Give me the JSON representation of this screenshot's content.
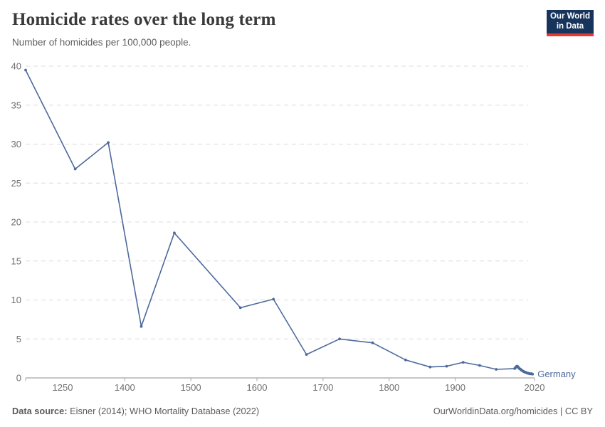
{
  "header": {
    "title": "Homicide rates over the long term",
    "subtitle": "Number of homicides per 100,000 people.",
    "logo": {
      "line1": "Our World",
      "line2": "in Data"
    }
  },
  "colors": {
    "series_line": "#4c6a9c",
    "logo_background": "#17355c",
    "logo_accent": "#e6392f",
    "gridline": "#dcdcdc",
    "axis_line": "#8c8c8c",
    "tick_label": "#6e6e6e"
  },
  "chart_data": {
    "type": "line",
    "title": "Homicide rates over the long term",
    "subtitle": "Number of homicides per 100,000 people.",
    "xlabel": "",
    "ylabel": "",
    "xlim": [
      1250,
      2020
    ],
    "ylim": [
      0,
      40
    ],
    "x_ticks": [
      1250,
      1400,
      1500,
      1600,
      1700,
      1800,
      1900,
      2020
    ],
    "y_ticks": [
      0,
      5,
      10,
      15,
      20,
      25,
      30,
      35,
      40
    ],
    "grid": "horizontal-dashed",
    "legend_position": "end-of-line-label",
    "series": [
      {
        "name": "Germany",
        "color": "#4c6a9c",
        "points": [
          [
            1250,
            39.5
          ],
          [
            1325,
            26.8
          ],
          [
            1375,
            30.2
          ],
          [
            1425,
            6.6
          ],
          [
            1475,
            18.6
          ],
          [
            1575,
            9.0
          ],
          [
            1625,
            10.1
          ],
          [
            1675,
            3.0
          ],
          [
            1725,
            5.0
          ],
          [
            1775,
            4.5
          ],
          [
            1825,
            2.3
          ],
          [
            1862,
            1.4
          ],
          [
            1887,
            1.5
          ],
          [
            1912,
            2.0
          ],
          [
            1937,
            1.6
          ],
          [
            1962,
            1.1
          ],
          [
            1990,
            1.2
          ],
          [
            1991,
            1.3
          ],
          [
            1992,
            1.4
          ],
          [
            1993,
            1.5
          ],
          [
            1994,
            1.5
          ],
          [
            1995,
            1.4
          ],
          [
            1996,
            1.3
          ],
          [
            1997,
            1.2
          ],
          [
            1998,
            1.15
          ],
          [
            1999,
            1.1
          ],
          [
            2000,
            1.0
          ],
          [
            2001,
            0.95
          ],
          [
            2002,
            0.9
          ],
          [
            2003,
            0.85
          ],
          [
            2004,
            0.8
          ],
          [
            2005,
            0.75
          ],
          [
            2006,
            0.72
          ],
          [
            2007,
            0.7
          ],
          [
            2008,
            0.65
          ],
          [
            2009,
            0.62
          ],
          [
            2010,
            0.6
          ],
          [
            2011,
            0.58
          ],
          [
            2012,
            0.55
          ],
          [
            2013,
            0.53
          ],
          [
            2014,
            0.52
          ],
          [
            2015,
            0.55
          ],
          [
            2016,
            0.5
          ],
          [
            2017,
            0.48
          ]
        ]
      }
    ]
  },
  "footer": {
    "source_label": "Data source:",
    "source_text": " Eisner (2014); WHO Mortality Database (2022)",
    "citation": "OurWorldinData.org/homicides | CC BY"
  }
}
